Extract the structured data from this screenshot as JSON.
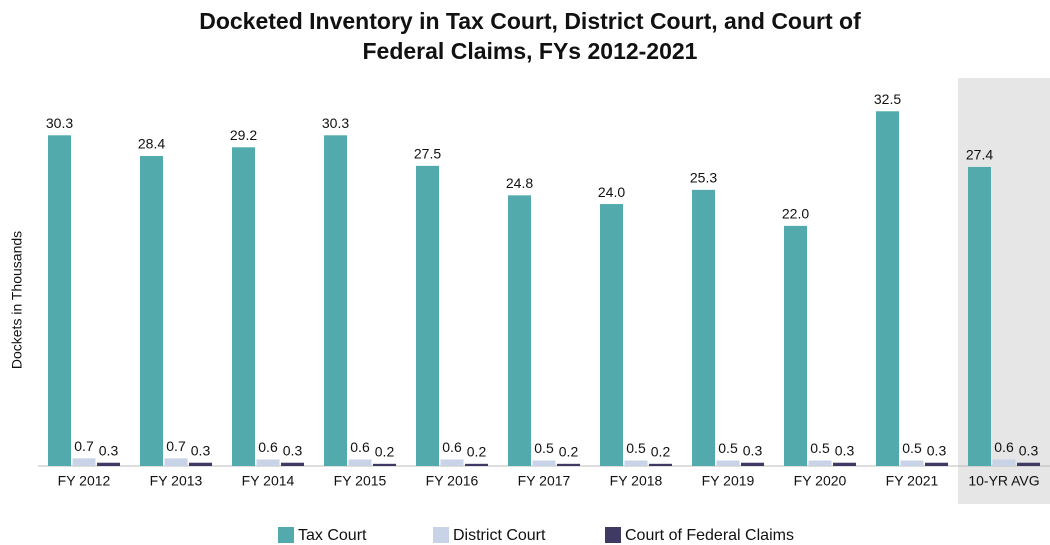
{
  "chart_data": {
    "type": "bar",
    "title": "Docketed Inventory in Tax Court, District Court, and Court of Federal Claims, FYs 2012-2021",
    "y_label": "Dockets in Thousands",
    "categories": [
      "FY 2012",
      "FY 2013",
      "FY 2014",
      "FY 2015",
      "FY 2016",
      "FY 2017",
      "FY 2018",
      "FY 2019",
      "FY 2020",
      "FY 2021",
      "10-YR AVG"
    ],
    "series": [
      {
        "name": "Tax Court",
        "color": "#52aaad",
        "values": [
          30.3,
          28.4,
          29.2,
          30.3,
          27.5,
          24.8,
          24.0,
          25.3,
          22.0,
          32.5,
          27.4
        ],
        "value_labels": [
          "30.3",
          "28.4",
          "29.2",
          "30.3",
          "27.5",
          "24.8",
          "24.0",
          "25.3",
          "22.0",
          "32.5",
          "27.4"
        ]
      },
      {
        "name": "District Court",
        "color": "#c9d3e8",
        "values": [
          0.7,
          0.7,
          0.6,
          0.6,
          0.6,
          0.5,
          0.5,
          0.5,
          0.5,
          0.5,
          0.6
        ],
        "value_labels": [
          "0.7",
          "0.7",
          "0.6",
          "0.6",
          "0.6",
          "0.5",
          "0.5",
          "0.5",
          "0.5",
          "0.5",
          "0.6"
        ]
      },
      {
        "name": "Court of Federal Claims",
        "color": "#3f3a63",
        "values": [
          0.3,
          0.3,
          0.3,
          0.2,
          0.2,
          0.2,
          0.2,
          0.3,
          0.3,
          0.3,
          0.3
        ],
        "value_labels": [
          "0.3",
          "0.3",
          "0.3",
          "0.2",
          "0.2",
          "0.2",
          "0.2",
          "0.3",
          "0.3",
          "0.3",
          "0.3"
        ]
      }
    ],
    "ylim": [
      0,
      35
    ],
    "legend": "bottom"
  }
}
